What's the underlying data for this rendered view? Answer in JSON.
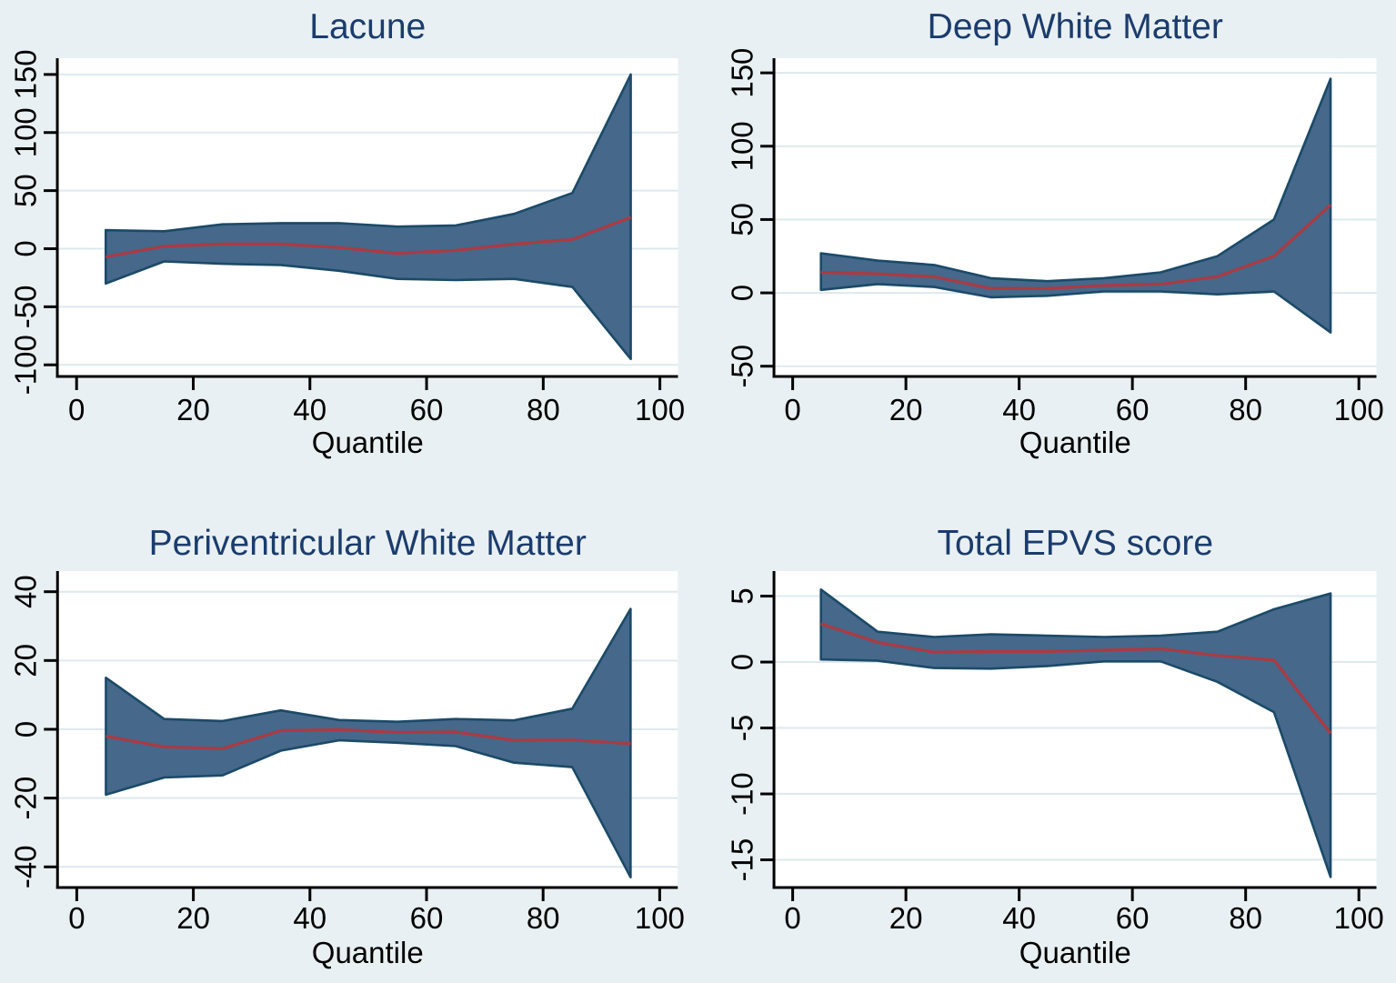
{
  "figure": {
    "kind": "quantile-regression-coefficient-plots",
    "panel_count": 4
  },
  "colors": {
    "background": "#e9f0f3",
    "plot_background": "#ffffff",
    "gridline": "#dde9ee",
    "band_fill": "#45688b",
    "band_edge": "#1b4a68",
    "median_line": "#ac3a42",
    "title_text": "#1b3c6d",
    "axis_text": "#000000",
    "axis_line": "#000000"
  },
  "chart_data": [
    {
      "type": "area",
      "title": "Lacune",
      "xlabel": "Quantile",
      "x": [
        5,
        15,
        25,
        35,
        45,
        55,
        65,
        75,
        85,
        95
      ],
      "series": [
        {
          "name": "ci-upper",
          "values": [
            16,
            15,
            21,
            22,
            22,
            19,
            20,
            30,
            48,
            150
          ]
        },
        {
          "name": "estimate",
          "values": [
            -7,
            2,
            4,
            4,
            1,
            -4,
            -1.5,
            4,
            8,
            27
          ]
        },
        {
          "name": "ci-lower",
          "values": [
            -30,
            -11,
            -13,
            -14,
            -19,
            -26,
            -27,
            -26,
            -33,
            -95
          ]
        }
      ],
      "xticks": [
        0,
        20,
        40,
        60,
        80,
        100
      ],
      "yticks": [
        -100,
        -50,
        0,
        50,
        100,
        150
      ],
      "xlim": [
        -3.3,
        103.1
      ],
      "ylim": [
        -110,
        164
      ],
      "grid": "horizontal",
      "legend": "none"
    },
    {
      "type": "area",
      "title": "Deep White Matter",
      "xlabel": "Quantile",
      "x": [
        5,
        15,
        25,
        35,
        45,
        55,
        65,
        75,
        85,
        95
      ],
      "series": [
        {
          "name": "ci-upper",
          "values": [
            27,
            22,
            19,
            10,
            8,
            10,
            14,
            25,
            50,
            146
          ]
        },
        {
          "name": "estimate",
          "values": [
            14,
            13,
            11,
            3,
            3,
            5,
            6,
            11,
            25,
            60
          ]
        },
        {
          "name": "ci-lower",
          "values": [
            2,
            6,
            4,
            -3,
            -2,
            1,
            1,
            -1,
            1,
            -27
          ]
        }
      ],
      "xticks": [
        0,
        20,
        40,
        60,
        80,
        100
      ],
      "yticks": [
        -50,
        0,
        50,
        100,
        150
      ],
      "xlim": [
        -3.3,
        103.1
      ],
      "ylim": [
        -57,
        160
      ],
      "grid": "horizontal",
      "legend": "none"
    },
    {
      "type": "area",
      "title": "Periventricular White Matter",
      "xlabel": "Quantile",
      "x": [
        5,
        15,
        25,
        35,
        45,
        55,
        65,
        75,
        85,
        95
      ],
      "series": [
        {
          "name": "ci-upper",
          "values": [
            15,
            3,
            2.4,
            5.5,
            2.7,
            2.2,
            3,
            2.6,
            6,
            35
          ]
        },
        {
          "name": "estimate",
          "values": [
            -2,
            -5.1,
            -5.6,
            -0.4,
            -0.1,
            -0.9,
            -0.8,
            -3.2,
            -3.1,
            -4.2
          ]
        },
        {
          "name": "ci-lower",
          "values": [
            -19,
            -14,
            -13.4,
            -6.2,
            -3.2,
            -3.9,
            -4.9,
            -9.7,
            -11,
            -43
          ]
        }
      ],
      "xticks": [
        0,
        20,
        40,
        60,
        80,
        100
      ],
      "yticks": [
        -40,
        -20,
        0,
        20,
        40
      ],
      "xlim": [
        -3.3,
        103.1
      ],
      "ylim": [
        -46,
        46
      ],
      "grid": "horizontal",
      "legend": "none"
    },
    {
      "type": "area",
      "title": "Total EPVS score",
      "xlabel": "Quantile",
      "x": [
        5,
        15,
        25,
        35,
        45,
        55,
        65,
        75,
        85,
        95
      ],
      "series": [
        {
          "name": "ci-upper",
          "values": [
            5.5,
            2.3,
            1.9,
            2.1,
            2.0,
            1.9,
            2.0,
            2.3,
            4.0,
            5.2
          ]
        },
        {
          "name": "estimate",
          "values": [
            2.9,
            1.5,
            0.75,
            0.8,
            0.8,
            0.9,
            1.0,
            0.5,
            0.15,
            -5.4
          ]
        },
        {
          "name": "ci-lower",
          "values": [
            0.2,
            0.1,
            -0.45,
            -0.5,
            -0.3,
            0.05,
            0.05,
            -1.5,
            -3.8,
            -16.3
          ]
        }
      ],
      "xticks": [
        0,
        20,
        40,
        60,
        80,
        100
      ],
      "yticks": [
        -15,
        -10,
        -5,
        0,
        5
      ],
      "xlim": [
        -3.3,
        103.1
      ],
      "ylim": [
        -17.1,
        6.9
      ],
      "grid": "horizontal",
      "legend": "none"
    }
  ]
}
